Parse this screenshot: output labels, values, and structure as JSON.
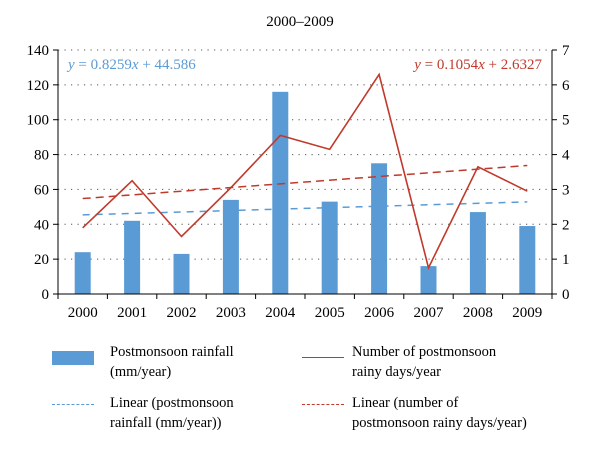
{
  "chart_data": {
    "type": "bar",
    "title": "2000–2009",
    "categories": [
      "2000",
      "2001",
      "2002",
      "2003",
      "2004",
      "2005",
      "2006",
      "2007",
      "2008",
      "2009"
    ],
    "series": [
      {
        "name": "Postmonsoon rainfall (mm/year)",
        "axis": "left",
        "kind": "bar",
        "color": "#5b9bd5",
        "values": [
          24,
          42,
          23,
          54,
          116,
          53,
          75,
          16,
          47,
          39
        ]
      },
      {
        "name": "Number of postmonsoon rainy days/year",
        "axis": "right",
        "kind": "line",
        "color": "#c0392b",
        "values": [
          1.9,
          3.25,
          1.65,
          3.05,
          4.55,
          4.15,
          6.3,
          0.75,
          3.65,
          2.95
        ]
      },
      {
        "name": "Linear (postmonsoon rainfall (mm/year))",
        "axis": "left",
        "kind": "trend",
        "color": "#5b9bd5",
        "slope": 0.8259,
        "intercept": 44.586
      },
      {
        "name": "Linear (number of postmonsoon rainy days/year)",
        "axis": "right",
        "kind": "trend",
        "color": "#c0392b",
        "slope": 0.1054,
        "intercept": 2.6327
      }
    ],
    "ylim_left": [
      0,
      140
    ],
    "yticks_left": [
      "0",
      "20",
      "40",
      "60",
      "80",
      "100",
      "120",
      "140"
    ],
    "ylim_right": [
      0,
      7
    ],
    "yticks_right": [
      "0",
      "1",
      "2",
      "3",
      "4",
      "5",
      "6",
      "7"
    ],
    "grid": "dotted horizontal",
    "annotations": {
      "left_equation": "y = 0.8259x + 44.586",
      "right_equation": "y = 0.1054x + 2.6327"
    },
    "legend": {
      "placement": "bottom",
      "items": [
        {
          "lines": [
            "Postmonsoon rainfall",
            "(mm/year)"
          ]
        },
        {
          "lines": [
            "Number of postmonsoon",
            "rainy days/year"
          ]
        },
        {
          "lines": [
            "Linear (postmonsoon",
            "rainfall (mm/year))"
          ]
        },
        {
          "lines": [
            "Linear (number of",
            "postmonsoon rainy days/year)"
          ]
        }
      ]
    }
  }
}
